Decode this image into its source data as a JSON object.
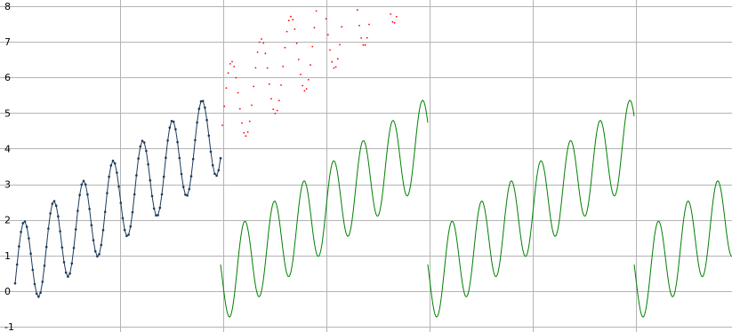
{
  "chart_data": {
    "type": "line",
    "title": "",
    "xlabel": "",
    "ylabel": "",
    "xlim": [
      0,
      823
    ],
    "ylim": [
      -1,
      8
    ],
    "x_gridlines": [
      135,
      251,
      367,
      483,
      599,
      715
    ],
    "y_ticks": [
      -1,
      0,
      1,
      2,
      3,
      4,
      5,
      6,
      7,
      8
    ],
    "y_tick_labels": [
      "-1",
      "0",
      "1",
      "2",
      "3",
      "4",
      "5",
      "6",
      "7",
      "8"
    ],
    "grid": true,
    "legend": "none",
    "signal_model": {
      "offset": 0.3,
      "trend_per_x": 0.017,
      "amplitude": 1.2,
      "period_x": 33.3,
      "phase_peak_x": 27
    },
    "series": [
      {
        "style": "line-with-markers",
        "color": "#1a3a5a",
        "marker_color": "#1a3a5a",
        "x_start": 17,
        "x_end": 248,
        "step": 2.2
      },
      {
        "style": "dotted",
        "color": "#ff0000",
        "x_start": 250,
        "x_end": 560,
        "step": 2.2,
        "trend_per_x": 0.019,
        "y_clip_max": 7.95
      },
      {
        "style": "line",
        "color": "#008000",
        "period_segments": [
          [
            248,
            481
          ],
          [
            481,
            713
          ],
          [
            713,
            823
          ]
        ],
        "step": 1
      }
    ]
  },
  "colors": {
    "background": "#ffffff",
    "grid": "#b4b4b4"
  }
}
